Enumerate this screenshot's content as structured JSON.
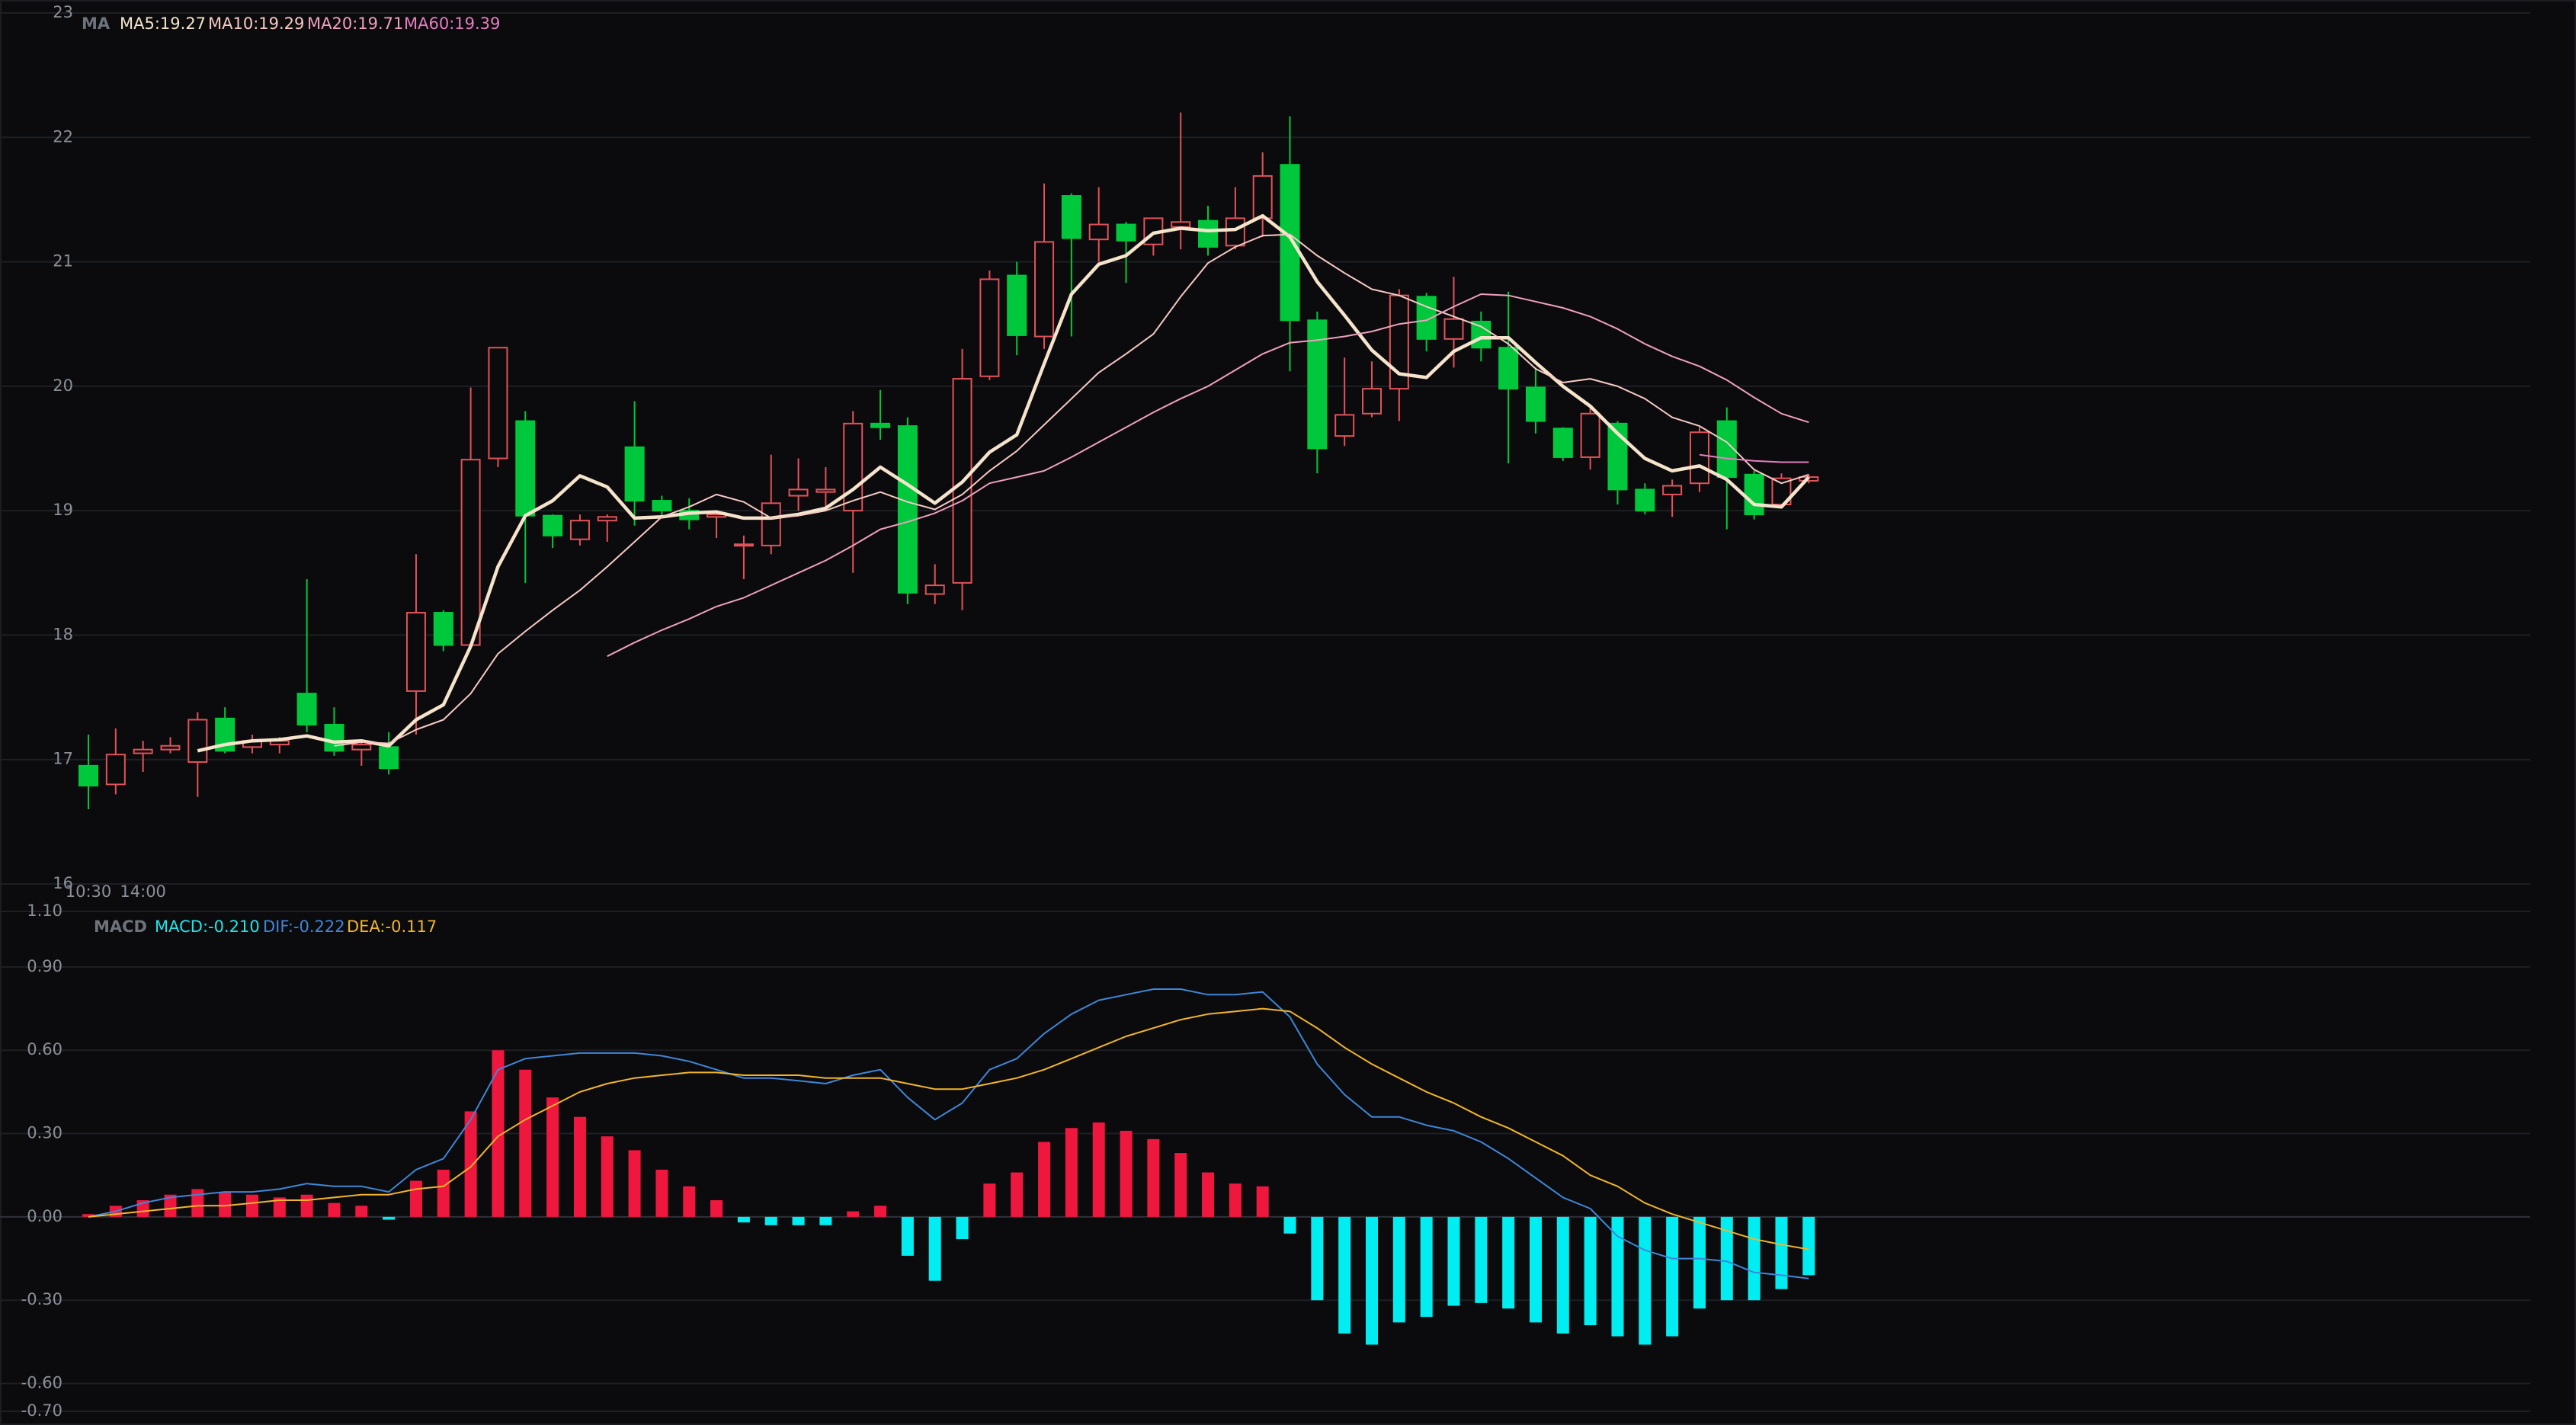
{
  "chart_data": [
    {
      "type": "candlestick",
      "indicator": "MA",
      "categories": [
        "10:30",
        null,
        "14:00",
        null,
        null,
        null,
        null,
        null,
        null,
        null,
        null,
        null,
        null,
        null,
        null,
        null,
        null,
        null,
        null,
        null,
        null,
        null,
        null,
        null,
        null,
        null,
        null,
        null,
        null,
        null,
        null,
        null,
        null,
        null,
        null,
        null,
        null,
        null,
        null,
        null,
        null,
        null,
        null,
        null,
        null,
        null,
        null,
        null,
        null,
        null,
        null,
        null,
        null,
        null,
        null,
        null,
        null,
        null,
        null,
        null,
        null,
        null,
        null,
        null
      ],
      "open": [
        16.95,
        16.8,
        17.05,
        17.08,
        16.98,
        17.33,
        17.1,
        17.12,
        17.53,
        17.28,
        17.08,
        17.1,
        17.55,
        18.18,
        17.92,
        19.42,
        19.72,
        18.96,
        18.77,
        18.92,
        19.51,
        19.08,
        19.0,
        18.95,
        18.72,
        18.72,
        19.12,
        19.15,
        19.0,
        19.7,
        19.68,
        18.33,
        18.42,
        20.08,
        20.89,
        20.4,
        21.53,
        21.18,
        21.3,
        21.14,
        21.28,
        21.33,
        21.13,
        21.35,
        21.78,
        20.53,
        19.6,
        19.78,
        19.98,
        20.72,
        20.38,
        20.52,
        20.31,
        19.99,
        19.66,
        19.43,
        19.7,
        19.17,
        19.13,
        19.22,
        19.72,
        19.29,
        19.05,
        19.24
      ],
      "high": [
        17.2,
        17.25,
        17.15,
        17.18,
        17.38,
        17.42,
        17.2,
        17.18,
        18.45,
        17.42,
        17.15,
        17.22,
        18.65,
        18.2,
        19.99,
        20.31,
        19.8,
        18.97,
        18.97,
        18.97,
        19.88,
        19.12,
        19.1,
        19.0,
        18.8,
        19.45,
        19.42,
        19.35,
        19.8,
        19.97,
        19.75,
        18.57,
        20.3,
        20.93,
        21.0,
        21.63,
        21.55,
        21.6,
        21.32,
        21.35,
        22.2,
        21.45,
        21.6,
        21.88,
        22.17,
        20.6,
        20.23,
        20.2,
        20.78,
        20.75,
        20.88,
        20.6,
        20.76,
        20.15,
        19.67,
        19.83,
        19.72,
        19.22,
        19.25,
        19.67,
        19.83,
        19.32,
        19.3,
        19.29
      ],
      "low": [
        16.6,
        16.72,
        16.9,
        17.05,
        16.7,
        17.05,
        17.05,
        17.05,
        17.22,
        17.03,
        16.95,
        16.88,
        17.2,
        17.87,
        17.9,
        19.35,
        18.42,
        18.7,
        18.72,
        18.75,
        18.88,
        18.95,
        18.85,
        18.78,
        18.45,
        18.65,
        19.0,
        19.0,
        18.5,
        19.57,
        18.25,
        18.25,
        18.2,
        20.05,
        20.25,
        20.3,
        20.4,
        21.0,
        20.83,
        21.05,
        21.1,
        21.05,
        21.1,
        21.2,
        20.12,
        19.3,
        19.52,
        19.75,
        19.72,
        20.28,
        20.15,
        20.2,
        19.38,
        19.62,
        19.4,
        19.33,
        19.05,
        18.97,
        18.95,
        19.15,
        18.85,
        18.93,
        19.03,
        19.22
      ],
      "close": [
        16.79,
        17.04,
        17.08,
        17.11,
        17.32,
        17.07,
        17.15,
        17.15,
        17.28,
        17.07,
        17.12,
        16.93,
        18.18,
        17.92,
        19.41,
        20.31,
        18.96,
        18.8,
        18.92,
        18.95,
        19.08,
        19.0,
        18.93,
        18.97,
        18.73,
        19.06,
        19.17,
        19.17,
        19.7,
        19.67,
        18.34,
        18.4,
        20.06,
        20.86,
        20.41,
        21.16,
        21.19,
        21.3,
        21.17,
        21.35,
        21.32,
        21.12,
        21.35,
        21.69,
        20.53,
        19.5,
        19.77,
        19.98,
        20.73,
        20.38,
        20.54,
        20.31,
        19.98,
        19.72,
        19.43,
        19.78,
        19.17,
        19.0,
        19.2,
        19.63,
        19.27,
        18.97,
        19.26,
        19.27
      ],
      "up_color": "#e2525a",
      "down_color": "#00c83c",
      "series": [
        {
          "name": "MA5:19.27",
          "color": "#f5e4cb",
          "values": [
            null,
            null,
            null,
            null,
            17.07,
            17.12,
            17.15,
            17.16,
            17.19,
            17.14,
            17.15,
            17.11,
            17.32,
            17.44,
            17.91,
            18.55,
            18.96,
            19.08,
            19.28,
            19.19,
            18.94,
            18.95,
            18.98,
            18.99,
            18.94,
            18.94,
            18.97,
            19.02,
            19.17,
            19.35,
            19.21,
            19.06,
            19.23,
            19.47,
            19.61,
            20.18,
            20.74,
            20.98,
            21.05,
            21.23,
            21.27,
            21.25,
            21.26,
            21.37,
            21.2,
            20.84,
            20.57,
            20.29,
            20.1,
            20.07,
            20.28,
            20.39,
            20.39,
            20.19,
            20.0,
            19.84,
            19.62,
            19.42,
            19.32,
            19.36,
            19.25,
            19.05,
            19.03,
            19.27
          ]
        },
        {
          "name": "MA10:19.29",
          "color": "#f6c9c4",
          "values": [
            null,
            null,
            null,
            null,
            null,
            null,
            null,
            null,
            null,
            17.11,
            17.14,
            17.13,
            17.24,
            17.32,
            17.53,
            17.85,
            18.03,
            18.2,
            18.36,
            18.55,
            18.75,
            18.95,
            19.03,
            19.13,
            19.07,
            18.94,
            18.96,
            19.0,
            19.08,
            19.15,
            19.07,
            19.01,
            19.13,
            19.32,
            19.48,
            19.69,
            19.9,
            20.11,
            20.26,
            20.42,
            20.72,
            20.99,
            21.12,
            21.21,
            21.22,
            21.05,
            20.91,
            20.78,
            20.73,
            20.64,
            20.56,
            20.48,
            20.34,
            20.14,
            20.03,
            20.06,
            20.0,
            19.9,
            19.75,
            19.68,
            19.55,
            19.33,
            19.22,
            19.29
          ]
        },
        {
          "name": "MA20:19.71",
          "color": "#f0a0bc",
          "values": [
            null,
            null,
            null,
            null,
            null,
            null,
            null,
            null,
            null,
            null,
            null,
            null,
            null,
            null,
            null,
            null,
            null,
            null,
            null,
            17.83,
            17.94,
            18.04,
            18.13,
            18.23,
            18.3,
            18.4,
            18.5,
            18.6,
            18.72,
            18.85,
            18.91,
            18.98,
            19.08,
            19.22,
            19.27,
            19.32,
            19.43,
            19.55,
            19.67,
            19.79,
            19.9,
            20.0,
            20.13,
            20.26,
            20.35,
            20.37,
            20.4,
            20.44,
            20.5,
            20.53,
            20.64,
            20.74,
            20.73,
            20.68,
            20.63,
            20.56,
            20.46,
            20.34,
            20.24,
            20.16,
            20.05,
            19.91,
            19.78,
            19.71
          ]
        },
        {
          "name": "MA60:19.39",
          "color": "#e57ec0",
          "values": [
            null,
            null,
            null,
            null,
            null,
            null,
            null,
            null,
            null,
            null,
            null,
            null,
            null,
            null,
            null,
            null,
            null,
            null,
            null,
            null,
            null,
            null,
            null,
            null,
            null,
            null,
            null,
            null,
            null,
            null,
            null,
            null,
            null,
            null,
            null,
            null,
            null,
            null,
            null,
            null,
            null,
            null,
            null,
            null,
            null,
            null,
            null,
            null,
            null,
            null,
            null,
            null,
            null,
            null,
            null,
            null,
            null,
            null,
            null,
            19.45,
            19.42,
            19.4,
            19.39,
            19.39
          ]
        }
      ],
      "ylim": [
        16,
        23
      ],
      "yticks": [
        16,
        17,
        18,
        19,
        20,
        21,
        22,
        23
      ],
      "grid": true
    },
    {
      "type": "macd",
      "indicator": "MACD",
      "series": [
        {
          "name": "MACD:-0.210",
          "type": "bar",
          "color": "#1ee6ea",
          "up_color": "#f0173f",
          "down_color": "#00eef2",
          "values": [
            0.01,
            0.04,
            0.06,
            0.08,
            0.1,
            0.09,
            0.08,
            0.07,
            0.08,
            0.05,
            0.04,
            -0.01,
            0.13,
            0.17,
            0.38,
            0.6,
            0.53,
            0.43,
            0.36,
            0.29,
            0.24,
            0.17,
            0.11,
            0.06,
            -0.02,
            -0.03,
            -0.03,
            -0.03,
            0.02,
            0.04,
            -0.14,
            -0.23,
            -0.08,
            0.12,
            0.16,
            0.27,
            0.32,
            0.34,
            0.31,
            0.28,
            0.23,
            0.16,
            0.12,
            0.11,
            -0.06,
            -0.3,
            -0.42,
            -0.46,
            -0.38,
            -0.36,
            -0.32,
            -0.31,
            -0.33,
            -0.38,
            -0.42,
            -0.39,
            -0.43,
            -0.46,
            -0.43,
            -0.33,
            -0.3,
            -0.3,
            -0.26,
            -0.21
          ]
        },
        {
          "name": "DIF:-0.222",
          "type": "line",
          "color": "#3f86d8",
          "values": [
            0,
            0.02,
            0.05,
            0.07,
            0.08,
            0.09,
            0.09,
            0.1,
            0.12,
            0.11,
            0.11,
            0.09,
            0.17,
            0.21,
            0.35,
            0.53,
            0.57,
            0.58,
            0.59,
            0.59,
            0.59,
            0.58,
            0.56,
            0.53,
            0.5,
            0.5,
            0.49,
            0.48,
            0.51,
            0.53,
            0.43,
            0.35,
            0.41,
            0.53,
            0.57,
            0.66,
            0.73,
            0.78,
            0.8,
            0.82,
            0.82,
            0.8,
            0.8,
            0.81,
            0.72,
            0.55,
            0.44,
            0.36,
            0.36,
            0.33,
            0.31,
            0.27,
            0.21,
            0.14,
            0.07,
            0.03,
            -0.07,
            -0.12,
            -0.15,
            -0.15,
            -0.16,
            -0.2,
            -0.21,
            -0.222
          ]
        },
        {
          "name": "DEA:-0.117",
          "type": "line",
          "color": "#f2b52a",
          "values": [
            0,
            0.01,
            0.02,
            0.03,
            0.04,
            0.04,
            0.05,
            0.06,
            0.06,
            0.07,
            0.08,
            0.08,
            0.1,
            0.11,
            0.18,
            0.29,
            0.35,
            0.4,
            0.45,
            0.48,
            0.5,
            0.51,
            0.52,
            0.52,
            0.51,
            0.51,
            0.51,
            0.5,
            0.5,
            0.5,
            0.48,
            0.46,
            0.46,
            0.48,
            0.5,
            0.53,
            0.57,
            0.61,
            0.65,
            0.68,
            0.71,
            0.73,
            0.74,
            0.75,
            0.74,
            0.68,
            0.61,
            0.55,
            0.5,
            0.45,
            0.41,
            0.36,
            0.32,
            0.27,
            0.22,
            0.15,
            0.11,
            0.05,
            0.01,
            -0.02,
            -0.05,
            -0.08,
            -0.1,
            -0.117
          ]
        }
      ],
      "ylim": [
        -0.7,
        1.1
      ],
      "yticks": [
        {
          "value": 1.1,
          "label": "1.10"
        },
        {
          "value": 0.9,
          "label": "0.90"
        },
        {
          "value": 0.6,
          "label": "0.60"
        },
        {
          "value": 0.3,
          "label": "0.30"
        },
        {
          "value": 0,
          "label": "0.00"
        },
        {
          "value": -0.3,
          "label": "-0.30"
        },
        {
          "value": -0.6,
          "label": "-0.60"
        },
        {
          "value": -0.7,
          "label": "-0.70"
        }
      ],
      "grid": true
    }
  ]
}
